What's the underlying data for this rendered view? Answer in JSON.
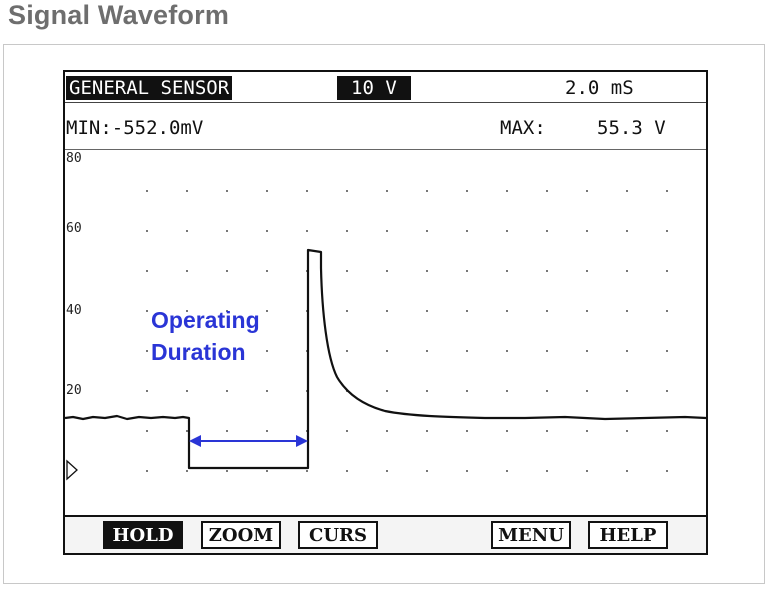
{
  "page": {
    "title": "Signal Waveform"
  },
  "header": {
    "channel": "GENERAL SENSOR",
    "volts_per_div": "10 V",
    "time_per_div": "2.0 mS"
  },
  "measurements": {
    "min_label": "MIN:",
    "min_value": "-552.0mV",
    "max_label": "MAX:",
    "max_value": "55.3 V"
  },
  "plot": {
    "y_ticks": [
      "80",
      "60",
      "40",
      "20"
    ],
    "annotation_line1": "Operating",
    "annotation_line2": "Duration",
    "trace_color": "#111111",
    "arrow_color": "#2a35d6"
  },
  "softkeys": {
    "hold": "HOLD",
    "zoom": "ZOOM",
    "curs": "CURS",
    "menu": "MENU",
    "help": "HELP"
  },
  "icons": {
    "ground_marker": "triangle-marker-icon"
  }
}
